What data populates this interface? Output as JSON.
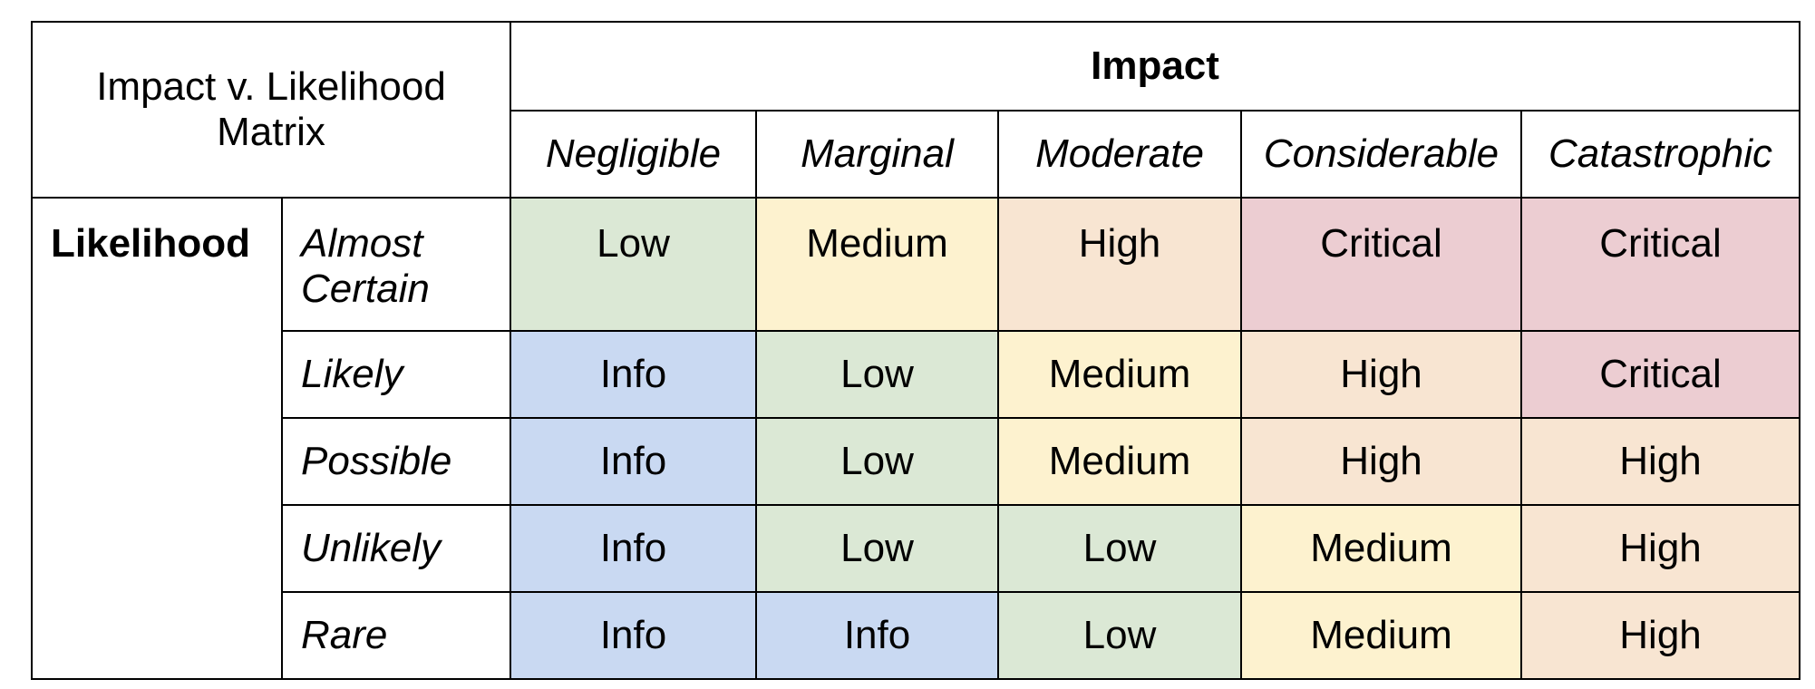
{
  "title": "Impact v. Likelihood Matrix",
  "impact_header": "Impact",
  "likelihood_header": "Likelihood",
  "impact_levels": [
    "Negligible",
    "Marginal",
    "Moderate",
    "Considerable",
    "Catastrophic"
  ],
  "rows": [
    {
      "likelihood": "Almost Certain",
      "cells": [
        "Low",
        "Medium",
        "High",
        "Critical",
        "Critical"
      ]
    },
    {
      "likelihood": "Likely",
      "cells": [
        "Info",
        "Low",
        "Medium",
        "High",
        "Critical"
      ]
    },
    {
      "likelihood": "Possible",
      "cells": [
        "Info",
        "Low",
        "Medium",
        "High",
        "High"
      ]
    },
    {
      "likelihood": "Unlikely",
      "cells": [
        "Info",
        "Low",
        "Low",
        "Medium",
        "High"
      ]
    },
    {
      "likelihood": "Rare",
      "cells": [
        "Info",
        "Info",
        "Low",
        "Medium",
        "High"
      ]
    }
  ],
  "risk_colors": {
    "Info": "#c9d9f2",
    "Low": "#dbe8d5",
    "Medium": "#fdf2cf",
    "High": "#f8e5d2",
    "Critical": "#eccdd2"
  }
}
